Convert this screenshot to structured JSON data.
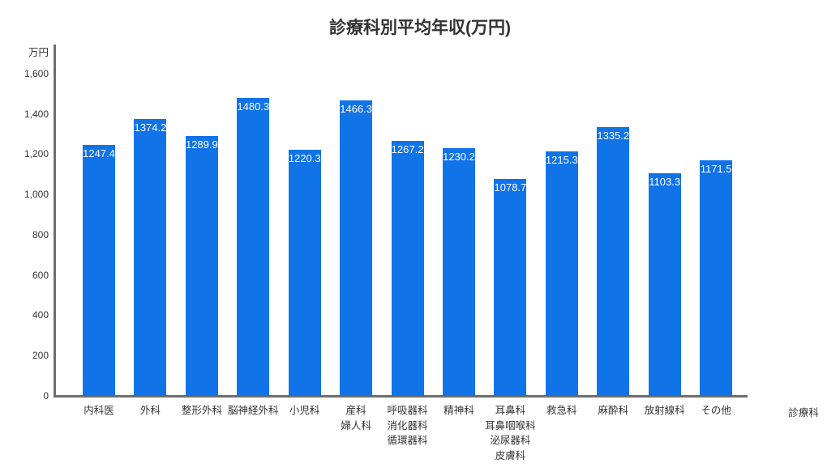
{
  "chart_data": {
    "type": "bar",
    "title": "診療科別平均年収(万円)",
    "xlabel": "診療科",
    "ylabel": "万円",
    "categories": [
      "内科医",
      "外科",
      "整形外科",
      "脳神経外科",
      "小児科",
      "産科\n婦人科",
      "呼吸器科\n消化器科\n循環器科",
      "精神科",
      "耳鼻科\n耳鼻咽喉科\n泌尿器科\n皮膚科",
      "救急科",
      "麻酔科",
      "放射線科",
      "その他"
    ],
    "values": [
      1247.4,
      1374.2,
      1289.9,
      1480.3,
      1220.3,
      1466.3,
      1267.2,
      1230.2,
      1078.7,
      1215.3,
      1335.2,
      1103.3,
      1171.5
    ],
    "yticks": [
      0,
      200,
      400,
      600,
      800,
      1000,
      1200,
      1400,
      1600
    ],
    "ylim": [
      0,
      1740
    ],
    "grid": false,
    "legend": false,
    "bar_color": "#1173e8",
    "value_label_color": "#ffffff",
    "axis_color": "#6e6e6e",
    "text_color": "#333333"
  }
}
